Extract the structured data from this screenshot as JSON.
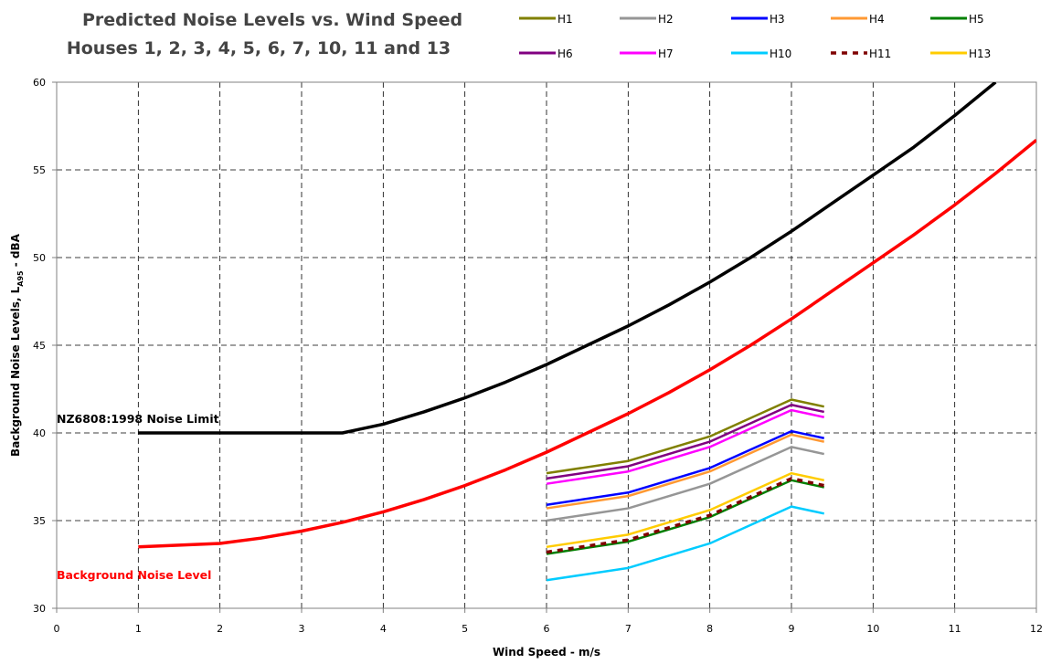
{
  "chart_data": {
    "type": "line",
    "title_line1": "Predicted Noise Levels vs. Wind Speed",
    "title_line2": "Houses 1, 2, 3, 4, 5, 6, 7, 10, 11 and 13",
    "xlabel": "Wind Speed - m/s",
    "ylabel_parts": [
      "Background Noise Levels, L",
      "A95",
      " - dBA"
    ],
    "xlim": [
      0,
      12
    ],
    "ylim": [
      30,
      60
    ],
    "x_ticks": [
      "0",
      "1",
      "2",
      "3",
      "4",
      "5",
      "6",
      "7",
      "8",
      "9",
      "10",
      "11",
      "12"
    ],
    "y_ticks": [
      "30",
      "35",
      "40",
      "45",
      "50",
      "55",
      "60"
    ],
    "grid": "dashed",
    "legend_position": "top-right",
    "annotations": {
      "limit_label": "NZ6808:1998 Noise Limit",
      "background_label": "Background Noise Level"
    },
    "curves": [
      {
        "id": "limit",
        "color": "#000000",
        "x": [
          1,
          1.5,
          2,
          2.5,
          3,
          3.5,
          4,
          4.5,
          5,
          5.5,
          6,
          6.5,
          7,
          7.5,
          8,
          8.5,
          9,
          9.5,
          10,
          10.5,
          11,
          11.5
        ],
        "y": [
          40,
          40,
          40,
          40,
          40,
          40,
          40.5,
          41.2,
          42,
          42.9,
          43.9,
          45,
          46.1,
          47.3,
          48.6,
          50,
          51.5,
          53.1,
          54.7,
          56.3,
          58.1,
          60
        ]
      },
      {
        "id": "background",
        "color": "#ff0000",
        "x": [
          1,
          1.5,
          2,
          2.5,
          3,
          3.5,
          4,
          4.5,
          5,
          5.5,
          6,
          6.5,
          7,
          7.5,
          8,
          8.5,
          9,
          9.5,
          10,
          10.5,
          11,
          11.5,
          12
        ],
        "y": [
          33.5,
          33.6,
          33.7,
          34,
          34.4,
          34.9,
          35.5,
          36.2,
          37,
          37.9,
          38.9,
          40,
          41.1,
          42.3,
          43.6,
          45,
          46.5,
          48.1,
          49.7,
          51.3,
          53,
          54.8,
          56.7
        ]
      }
    ],
    "x": [
      6,
      7,
      8,
      9,
      9.4
    ],
    "series": [
      {
        "name": "H1",
        "color": "#808000",
        "dash": "solid",
        "values": [
          37.7,
          38.4,
          39.8,
          41.9,
          41.5
        ]
      },
      {
        "name": "H2",
        "color": "#969696",
        "dash": "solid",
        "values": [
          35.0,
          35.7,
          37.1,
          39.2,
          38.8
        ]
      },
      {
        "name": "H3",
        "color": "#0000ff",
        "dash": "solid",
        "values": [
          35.9,
          36.6,
          38.0,
          40.1,
          39.7
        ]
      },
      {
        "name": "H4",
        "color": "#ff9933",
        "dash": "solid",
        "values": [
          35.7,
          36.4,
          37.8,
          39.9,
          39.5
        ]
      },
      {
        "name": "H5",
        "color": "#008000",
        "dash": "solid",
        "values": [
          33.1,
          33.8,
          35.2,
          37.3,
          36.9
        ]
      },
      {
        "name": "H6",
        "color": "#800080",
        "dash": "solid",
        "values": [
          37.4,
          38.1,
          39.5,
          41.6,
          41.2
        ]
      },
      {
        "name": "H7",
        "color": "#ff00ff",
        "dash": "solid",
        "values": [
          37.1,
          37.8,
          39.2,
          41.3,
          40.9
        ]
      },
      {
        "name": "H10",
        "color": "#00ccff",
        "dash": "solid",
        "values": [
          31.6,
          32.3,
          33.7,
          35.8,
          35.4
        ]
      },
      {
        "name": "H11",
        "color": "#800000",
        "dash": "dashed",
        "values": [
          33.2,
          33.9,
          35.3,
          37.4,
          37.0
        ]
      },
      {
        "name": "H13",
        "color": "#ffcc00",
        "dash": "solid",
        "values": [
          33.5,
          34.2,
          35.6,
          37.7,
          37.3
        ]
      }
    ]
  }
}
